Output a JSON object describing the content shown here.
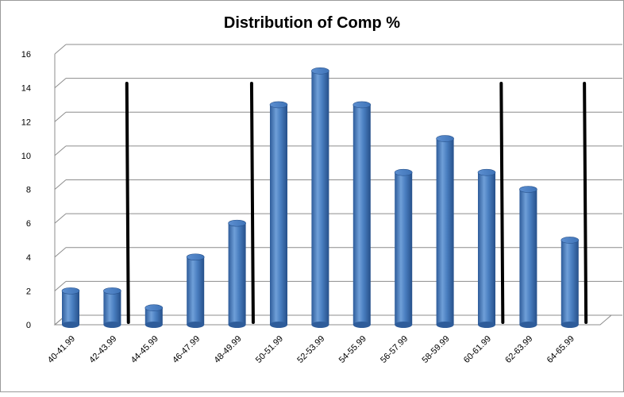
{
  "chart_data": {
    "type": "bar",
    "title": "Distribution of Comp %",
    "xlabel": "",
    "ylabel": "",
    "categories": [
      "40-41.99",
      "42-43.99",
      "44-45.99",
      "46-47.99",
      "48-49.99",
      "50-51.99",
      "52-53.99",
      "54-55.99",
      "56-57.99",
      "58-59.99",
      "60-61.99",
      "62-63.99",
      "64-65.99"
    ],
    "values": [
      2,
      2,
      1,
      4,
      6,
      13,
      15,
      13,
      9,
      11,
      9,
      8,
      5
    ],
    "ylim": [
      0,
      16
    ],
    "yticks": [
      "0",
      "2",
      "4",
      "6",
      "8",
      "10",
      "12",
      "14",
      "16"
    ],
    "grid": true,
    "legend": "none",
    "bar_style": "3d-cylinder",
    "bar_color": "#4a7fc1",
    "annotations": {
      "description": "hand-drawn vertical black marker lines",
      "marker_color": "#000000",
      "vertical_markers_at_category_index": [
        1.35,
        4.35,
        10.35,
        12.35
      ]
    }
  }
}
